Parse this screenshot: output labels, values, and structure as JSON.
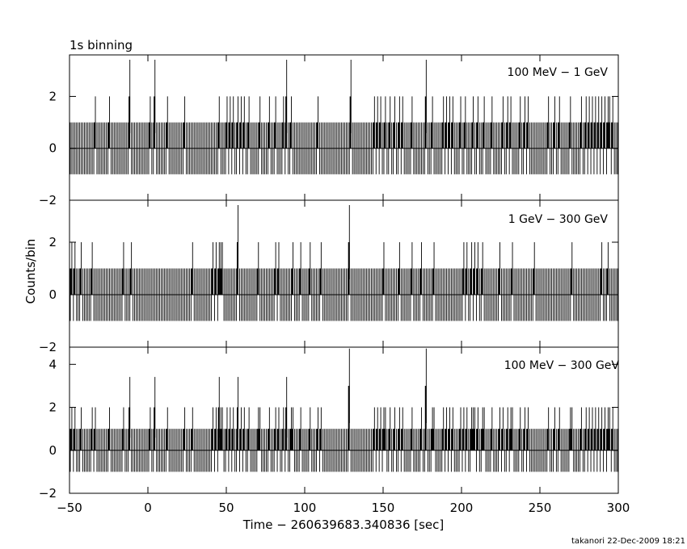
{
  "figure": {
    "title": "1s binning",
    "ylabel": "Counts/bin",
    "xlabel": "Time − 260639683.340836 [sec]",
    "footer": "takanori 22-Dec-2009 18:21"
  },
  "chart_data": [
    {
      "type": "bar",
      "panel": "top",
      "band_label": "100 MeV − 1 GeV",
      "ylim": [
        -2,
        3.6
      ],
      "yticks": [
        2,
        0,
        -2
      ],
      "xlim": [
        -50,
        300
      ],
      "xticks": [
        -50,
        0,
        50,
        100,
        150,
        200,
        250,
        300
      ],
      "bin_width_sec": 1,
      "ones": [
        -34,
        -25,
        1,
        12,
        23,
        45,
        50,
        52,
        54,
        57,
        59,
        61,
        64,
        71,
        77,
        81,
        86,
        91,
        108,
        144,
        146,
        148,
        151,
        154,
        157,
        160,
        162,
        168,
        181,
        188,
        190,
        192,
        194,
        199,
        202,
        207,
        210,
        214,
        219,
        226,
        229,
        231,
        237,
        240,
        242,
        255,
        259,
        262,
        269,
        276,
        279,
        281,
        283,
        285,
        287,
        289,
        291,
        293,
        294,
        296
      ],
      "twos": [
        -12,
        4,
        88,
        129,
        177
      ],
      "threes": []
    },
    {
      "type": "bar",
      "panel": "middle",
      "band_label": "1 GeV − 300 GeV",
      "ylim": [
        -2,
        3.6
      ],
      "yticks": [
        2,
        0,
        -2
      ],
      "xlim": [
        -50,
        300
      ],
      "xticks": [
        -50,
        0,
        50,
        100,
        150,
        200,
        250,
        300
      ],
      "bin_width_sec": 1,
      "ones": [
        -49,
        -47,
        -43,
        -36,
        -16,
        -11,
        28,
        41,
        43,
        45,
        46,
        47,
        70,
        81,
        83,
        92,
        97,
        103,
        110,
        150,
        160,
        168,
        174,
        182,
        201,
        203,
        206,
        208,
        210,
        213,
        224,
        232,
        246,
        270,
        289,
        293
      ],
      "twos": [
        57,
        128
      ],
      "threes": []
    },
    {
      "type": "bar",
      "panel": "bottom",
      "band_label": "100 MeV − 300 GeV",
      "ylim": [
        -2,
        4.8
      ],
      "yticks": [
        4,
        2,
        0,
        -2
      ],
      "xlim": [
        -50,
        300
      ],
      "xticks": [
        -50,
        0,
        50,
        100,
        150,
        200,
        250,
        300
      ],
      "bin_width_sec": 1,
      "ones": [
        -49,
        -47,
        -43,
        -36,
        -34,
        -25,
        -16,
        1,
        12,
        23,
        28,
        41,
        43,
        46,
        47,
        50,
        52,
        54,
        59,
        61,
        64,
        70,
        71,
        77,
        81,
        83,
        86,
        91,
        92,
        97,
        103,
        108,
        110,
        144,
        146,
        148,
        150,
        151,
        154,
        157,
        160,
        162,
        168,
        174,
        181,
        182,
        188,
        190,
        192,
        194,
        199,
        201,
        203,
        206,
        207,
        208,
        210,
        213,
        214,
        219,
        224,
        226,
        229,
        231,
        232,
        237,
        240,
        242,
        255,
        259,
        262,
        269,
        270,
        276,
        279,
        281,
        283,
        285,
        287,
        289,
        291,
        293,
        294,
        296
      ],
      "twos": [
        -12,
        4,
        45,
        57,
        88
      ],
      "threes": [
        128,
        177
      ]
    }
  ]
}
